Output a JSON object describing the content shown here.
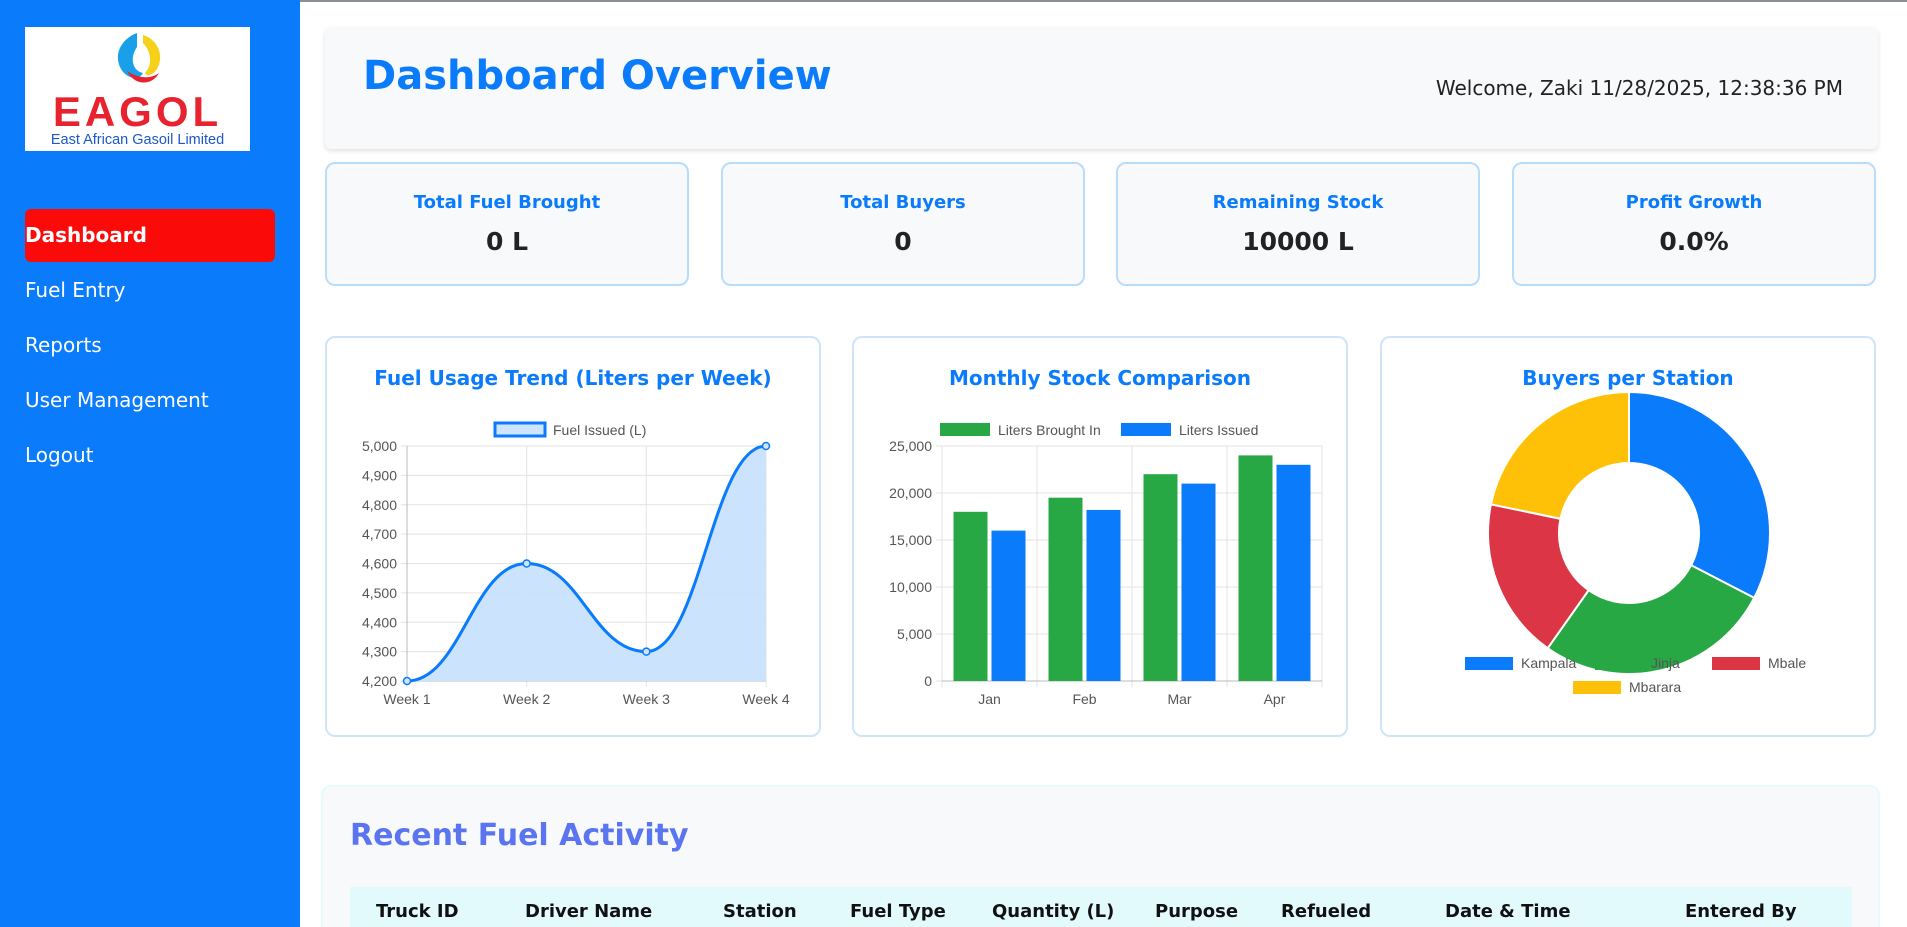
{
  "brand": {
    "logo_word": "EAGOL",
    "logo_tagline": "East African Gasoil Limited"
  },
  "sidebar": {
    "items": [
      {
        "label": "Dashboard",
        "active": true
      },
      {
        "label": "Fuel Entry",
        "active": false
      },
      {
        "label": "Reports",
        "active": false
      },
      {
        "label": "User Management",
        "active": false
      },
      {
        "label": "Logout",
        "active": false
      }
    ]
  },
  "header": {
    "title": "Dashboard Overview",
    "welcome": "Welcome, Zaki 11/28/2025, 12:38:36 PM"
  },
  "stats": [
    {
      "label": "Total Fuel Brought",
      "value": "0 L"
    },
    {
      "label": "Total Buyers",
      "value": "0"
    },
    {
      "label": "Remaining Stock",
      "value": "10000 L"
    },
    {
      "label": "Profit Growth",
      "value": "0.0%"
    }
  ],
  "colors": {
    "primary": "#0a7bfb",
    "active_nav": "#fb0a0a",
    "green": "#28a745",
    "red": "#dc3545",
    "yellow": "#ffc107",
    "section_title": "#5b74f0"
  },
  "chart_data": [
    {
      "type": "line",
      "title": "Fuel Usage Trend (Liters per Week)",
      "categories": [
        "Week 1",
        "Week 2",
        "Week 3",
        "Week 4"
      ],
      "series": [
        {
          "name": "Fuel Issued (L)",
          "values": [
            4200,
            4600,
            4300,
            5000
          ]
        }
      ],
      "ylim": [
        4200,
        5000
      ],
      "yticks": [
        "5,000",
        "4,900",
        "4,800",
        "4,700",
        "4,600",
        "4,500",
        "4,400",
        "4,300",
        "4,200"
      ],
      "grid": true,
      "legend": "top"
    },
    {
      "type": "bar",
      "title": "Monthly Stock Comparison",
      "categories": [
        "Jan",
        "Feb",
        "Mar",
        "Apr"
      ],
      "series": [
        {
          "name": "Liters Brought In",
          "values": [
            18000,
            19500,
            22000,
            24000
          ]
        },
        {
          "name": "Liters Issued",
          "values": [
            16000,
            18200,
            21000,
            23000
          ]
        }
      ],
      "ylim": [
        0,
        25000
      ],
      "yticks": [
        "25,000",
        "20,000",
        "15,000",
        "10,000",
        "5,000",
        "0"
      ],
      "grid": true,
      "legend": "top"
    },
    {
      "type": "pie",
      "title": "Buyers per Station",
      "categories": [
        "Kampala",
        "Jinja",
        "Mbale",
        "Mbarara"
      ],
      "values": [
        30,
        25,
        17,
        20
      ],
      "legend": "bottom"
    }
  ],
  "activity": {
    "title": "Recent Fuel Activity",
    "columns": [
      "Truck ID",
      "Driver Name",
      "Station",
      "Fuel Type",
      "Quantity (L)",
      "Purpose",
      "Refueled",
      "Date & Time",
      "Entered By"
    ]
  }
}
